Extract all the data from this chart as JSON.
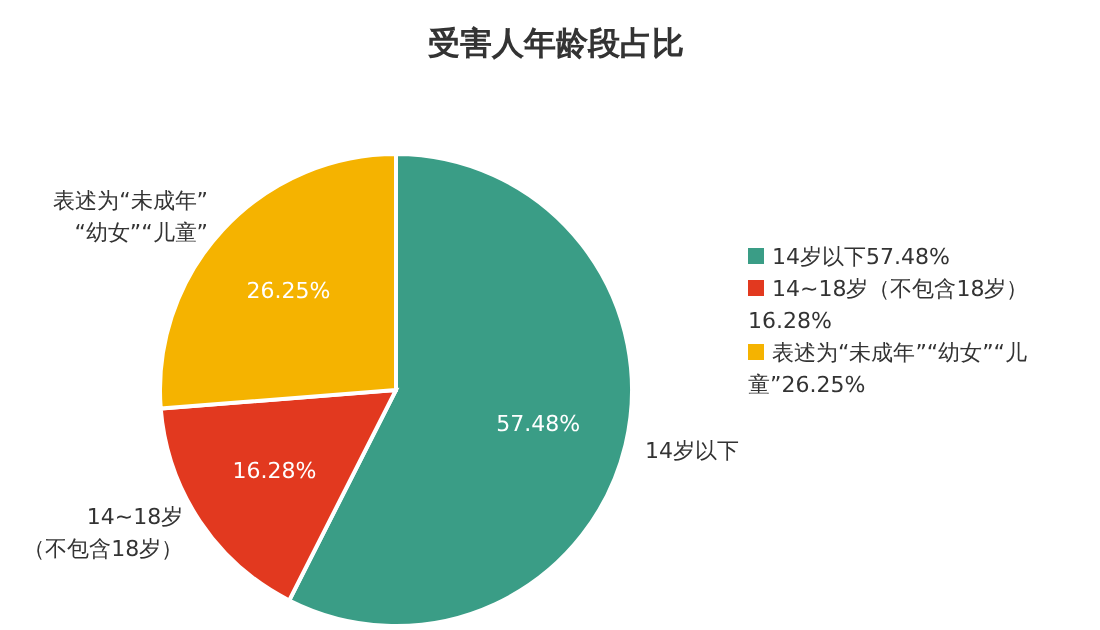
{
  "chart_data": {
    "type": "pie",
    "title": "受害人年龄段占比",
    "categories": [
      "14岁以下",
      "14~18岁（不包含18岁）",
      "表述为“未成年”“幼女”“儿童”"
    ],
    "values": [
      57.48,
      16.28,
      26.25
    ],
    "colors": [
      "#3a9d86",
      "#e2391f",
      "#f5b300"
    ],
    "value_labels": [
      "57.48%",
      "16.28%",
      "26.25%"
    ],
    "legend": "right"
  }
}
